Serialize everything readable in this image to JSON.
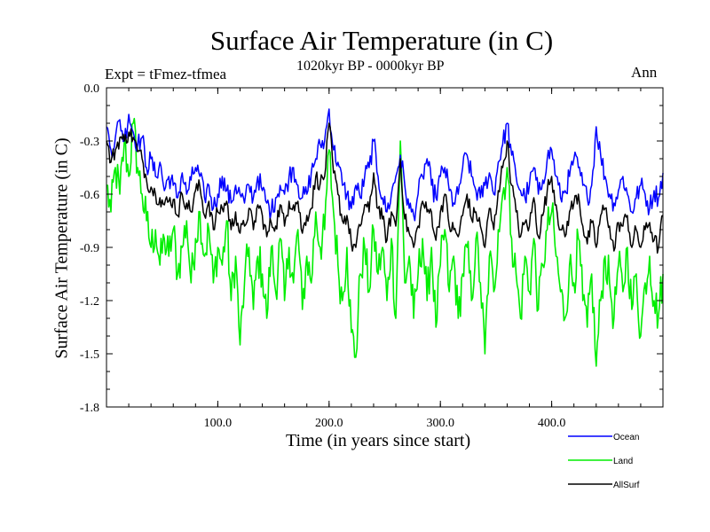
{
  "chart_data": {
    "type": "line",
    "title": "Surface Air Temperature (in C)",
    "subtitle_left": "Expt = tFmez-tfmea",
    "subtitle_center": "1020kyr BP - 0000kyr BP",
    "subtitle_right": "Ann",
    "xlabel": "Time (in years since start)",
    "ylabel": "Surface Air Temperature (in C)",
    "xlim": [
      0,
      500
    ],
    "ylim": [
      -1.8,
      0.0
    ],
    "x_ticks": [
      100,
      200,
      300,
      400
    ],
    "x_tick_labels": [
      "100.0",
      "200.0",
      "300.0",
      "400.0"
    ],
    "y_ticks": [
      0.0,
      -0.3,
      -0.6,
      -0.9,
      -1.2,
      -1.5,
      -1.8
    ],
    "y_tick_labels": [
      "0.0",
      "-0.3",
      "-0.6",
      "-0.9",
      "-1.2",
      "-1.5",
      "-1.8"
    ],
    "grid": false,
    "legend_position": "bottom-right, outside plot",
    "series": [
      {
        "name": "Ocean",
        "color": "#0000ff",
        "x": [
          0,
          4,
          8,
          12,
          16,
          20,
          24,
          28,
          32,
          36,
          40,
          44,
          48,
          52,
          56,
          60,
          64,
          68,
          72,
          76,
          80,
          84,
          88,
          92,
          96,
          100,
          104,
          108,
          112,
          116,
          120,
          124,
          128,
          132,
          136,
          140,
          144,
          148,
          152,
          156,
          160,
          164,
          168,
          172,
          176,
          180,
          184,
          188,
          192,
          196,
          200,
          204,
          208,
          212,
          216,
          220,
          224,
          228,
          232,
          236,
          240,
          244,
          248,
          252,
          256,
          260,
          264,
          268,
          272,
          276,
          280,
          284,
          288,
          292,
          296,
          300,
          304,
          308,
          312,
          316,
          320,
          324,
          328,
          332,
          336,
          340,
          344,
          348,
          352,
          356,
          360,
          364,
          368,
          372,
          376,
          380,
          384,
          388,
          392,
          396,
          400,
          404,
          408,
          412,
          416,
          420,
          424,
          428,
          432,
          436,
          440,
          444,
          448,
          452,
          456,
          460,
          464,
          468,
          472,
          476,
          480,
          484,
          488,
          492,
          496,
          500
        ],
        "values": [
          -0.22,
          -0.35,
          -0.28,
          -0.18,
          -0.3,
          -0.15,
          -0.25,
          -0.32,
          -0.28,
          -0.45,
          -0.4,
          -0.5,
          -0.42,
          -0.58,
          -0.5,
          -0.55,
          -0.62,
          -0.48,
          -0.6,
          -0.52,
          -0.45,
          -0.5,
          -0.62,
          -0.55,
          -0.68,
          -0.6,
          -0.5,
          -0.58,
          -0.65,
          -0.55,
          -0.6,
          -0.65,
          -0.55,
          -0.62,
          -0.5,
          -0.58,
          -0.65,
          -0.7,
          -0.62,
          -0.55,
          -0.6,
          -0.5,
          -0.45,
          -0.55,
          -0.62,
          -0.6,
          -0.48,
          -0.4,
          -0.32,
          -0.3,
          -0.12,
          -0.35,
          -0.42,
          -0.55,
          -0.6,
          -0.68,
          -0.55,
          -0.62,
          -0.5,
          -0.45,
          -0.3,
          -0.5,
          -0.62,
          -0.7,
          -0.6,
          -0.5,
          -0.38,
          -0.55,
          -0.68,
          -0.72,
          -0.6,
          -0.5,
          -0.4,
          -0.55,
          -0.62,
          -0.5,
          -0.45,
          -0.58,
          -0.65,
          -0.6,
          -0.45,
          -0.38,
          -0.5,
          -0.58,
          -0.62,
          -0.55,
          -0.48,
          -0.6,
          -0.42,
          -0.32,
          -0.2,
          -0.38,
          -0.5,
          -0.58,
          -0.62,
          -0.55,
          -0.45,
          -0.6,
          -0.52,
          -0.4,
          -0.35,
          -0.5,
          -0.62,
          -0.58,
          -0.5,
          -0.4,
          -0.45,
          -0.55,
          -0.62,
          -0.55,
          -0.22,
          -0.38,
          -0.5,
          -0.6,
          -0.65,
          -0.58,
          -0.5,
          -0.6,
          -0.7,
          -0.62,
          -0.55,
          -0.6,
          -0.68,
          -0.58,
          -0.62,
          -0.48
        ]
      },
      {
        "name": "Land",
        "color": "#00ee00",
        "x": [
          0,
          4,
          8,
          12,
          16,
          20,
          24,
          28,
          32,
          36,
          40,
          44,
          48,
          52,
          56,
          60,
          64,
          68,
          72,
          76,
          80,
          84,
          88,
          92,
          96,
          100,
          104,
          108,
          112,
          116,
          120,
          124,
          128,
          132,
          136,
          140,
          144,
          148,
          152,
          156,
          160,
          164,
          168,
          172,
          176,
          180,
          184,
          188,
          192,
          196,
          200,
          204,
          208,
          212,
          216,
          220,
          224,
          228,
          232,
          236,
          240,
          244,
          248,
          252,
          256,
          260,
          264,
          268,
          272,
          276,
          280,
          284,
          288,
          292,
          296,
          300,
          304,
          308,
          312,
          316,
          320,
          324,
          328,
          332,
          336,
          340,
          344,
          348,
          352,
          356,
          360,
          364,
          368,
          372,
          376,
          380,
          384,
          388,
          392,
          396,
          400,
          404,
          408,
          412,
          416,
          420,
          424,
          428,
          432,
          436,
          440,
          444,
          448,
          452,
          456,
          460,
          464,
          468,
          472,
          476,
          480,
          484,
          488,
          492,
          496,
          500
        ],
        "values": [
          -0.55,
          -0.7,
          -0.45,
          -0.6,
          -0.3,
          -0.5,
          -0.2,
          -0.45,
          -0.6,
          -0.75,
          -0.9,
          -0.8,
          -1.0,
          -0.85,
          -0.95,
          -0.8,
          -1.05,
          -0.9,
          -0.75,
          -1.1,
          -0.85,
          -0.7,
          -0.95,
          -0.8,
          -1.1,
          -0.9,
          -1.0,
          -0.75,
          -1.2,
          -0.95,
          -1.45,
          -1.1,
          -0.9,
          -1.25,
          -0.95,
          -1.05,
          -1.3,
          -0.9,
          -1.15,
          -0.85,
          -1.2,
          -0.9,
          -1.1,
          -0.8,
          -1.25,
          -0.95,
          -1.1,
          -0.7,
          -0.9,
          -0.8,
          -0.35,
          -0.7,
          -1.0,
          -1.2,
          -0.9,
          -1.38,
          -1.52,
          -1.05,
          -0.9,
          -1.15,
          -0.8,
          -1.05,
          -0.9,
          -1.2,
          -0.85,
          -1.3,
          -0.3,
          -1.1,
          -0.95,
          -1.3,
          -1.05,
          -0.85,
          -1.2,
          -0.9,
          -1.35,
          -1.0,
          -0.8,
          -1.15,
          -0.95,
          -1.3,
          -1.05,
          -0.9,
          -1.2,
          -0.85,
          -1.1,
          -1.5,
          -0.95,
          -1.15,
          -0.8,
          -0.6,
          -0.45,
          -0.85,
          -1.05,
          -1.3,
          -0.95,
          -1.15,
          -0.85,
          -1.25,
          -1.0,
          -0.8,
          -0.7,
          -0.95,
          -1.15,
          -1.3,
          -1.0,
          -1.1,
          -0.85,
          -1.2,
          -1.35,
          -1.05,
          -1.57,
          -1.2,
          -0.95,
          -1.1,
          -1.3,
          -1.0,
          -1.15,
          -0.9,
          -1.25,
          -1.05,
          -1.4,
          -1.1,
          -0.95,
          -1.2,
          -1.28,
          -1.05
        ]
      },
      {
        "name": "AllSurf",
        "color": "#000000",
        "x": [
          0,
          4,
          8,
          12,
          16,
          20,
          24,
          28,
          32,
          36,
          40,
          44,
          48,
          52,
          56,
          60,
          64,
          68,
          72,
          76,
          80,
          84,
          88,
          92,
          96,
          100,
          104,
          108,
          112,
          116,
          120,
          124,
          128,
          132,
          136,
          140,
          144,
          148,
          152,
          156,
          160,
          164,
          168,
          172,
          176,
          180,
          184,
          188,
          192,
          196,
          200,
          204,
          208,
          212,
          216,
          220,
          224,
          228,
          232,
          236,
          240,
          244,
          248,
          252,
          256,
          260,
          264,
          268,
          272,
          276,
          280,
          284,
          288,
          292,
          296,
          300,
          304,
          308,
          312,
          316,
          320,
          324,
          328,
          332,
          336,
          340,
          344,
          348,
          352,
          356,
          360,
          364,
          368,
          372,
          376,
          380,
          384,
          388,
          392,
          396,
          400,
          404,
          408,
          412,
          416,
          420,
          424,
          428,
          432,
          436,
          440,
          444,
          448,
          452,
          456,
          460,
          464,
          468,
          472,
          476,
          480,
          484,
          488,
          492,
          496,
          500
        ],
        "values": [
          -0.3,
          -0.42,
          -0.35,
          -0.28,
          -0.3,
          -0.25,
          -0.28,
          -0.36,
          -0.4,
          -0.52,
          -0.56,
          -0.6,
          -0.62,
          -0.66,
          -0.64,
          -0.63,
          -0.72,
          -0.6,
          -0.65,
          -0.7,
          -0.58,
          -0.56,
          -0.72,
          -0.64,
          -0.8,
          -0.7,
          -0.68,
          -0.64,
          -0.8,
          -0.7,
          -0.82,
          -0.78,
          -0.68,
          -0.8,
          -0.66,
          -0.72,
          -0.84,
          -0.76,
          -0.78,
          -0.66,
          -0.78,
          -0.64,
          -0.66,
          -0.64,
          -0.82,
          -0.72,
          -0.68,
          -0.5,
          -0.54,
          -0.5,
          -0.2,
          -0.48,
          -0.6,
          -0.75,
          -0.72,
          -0.88,
          -0.9,
          -0.78,
          -0.66,
          -0.7,
          -0.48,
          -0.68,
          -0.74,
          -0.86,
          -0.7,
          -0.78,
          -0.4,
          -0.74,
          -0.82,
          -0.9,
          -0.78,
          -0.64,
          -0.7,
          -0.7,
          -0.86,
          -0.7,
          -0.6,
          -0.78,
          -0.8,
          -0.84,
          -0.72,
          -0.6,
          -0.74,
          -0.7,
          -0.78,
          -0.9,
          -0.68,
          -0.8,
          -0.58,
          -0.45,
          -0.3,
          -0.55,
          -0.7,
          -0.84,
          -0.76,
          -0.78,
          -0.62,
          -0.84,
          -0.72,
          -0.58,
          -0.5,
          -0.66,
          -0.8,
          -0.84,
          -0.7,
          -0.65,
          -0.6,
          -0.78,
          -0.88,
          -0.76,
          -0.9,
          -0.72,
          -0.68,
          -0.78,
          -0.92,
          -0.76,
          -0.78,
          -0.72,
          -0.9,
          -0.8,
          -0.9,
          -0.8,
          -0.76,
          -0.86,
          -0.9,
          -0.72
        ]
      }
    ]
  }
}
